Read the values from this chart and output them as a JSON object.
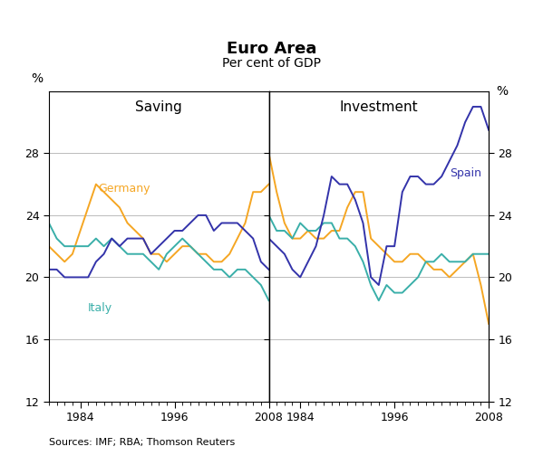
{
  "title": "Euro Area",
  "subtitle": "Per cent of GDP",
  "left_label": "Saving",
  "right_label": "Investment",
  "ylabel_left": "%",
  "ylabel_right": "%",
  "source": "Sources: IMF; RBA; Thomson Reuters",
  "ylim": [
    12,
    32
  ],
  "yticks": [
    12,
    16,
    20,
    24,
    28
  ],
  "years": [
    1980,
    1981,
    1982,
    1983,
    1984,
    1985,
    1986,
    1987,
    1988,
    1989,
    1990,
    1991,
    1992,
    1993,
    1994,
    1995,
    1996,
    1997,
    1998,
    1999,
    2000,
    2001,
    2002,
    2003,
    2004,
    2005,
    2006,
    2007,
    2008
  ],
  "saving_germany": [
    22.0,
    21.5,
    21.0,
    21.5,
    23.0,
    24.5,
    26.0,
    25.5,
    25.0,
    24.5,
    23.5,
    23.0,
    22.5,
    21.5,
    21.5,
    21.0,
    21.5,
    22.0,
    22.0,
    21.5,
    21.5,
    21.0,
    21.0,
    21.5,
    22.5,
    23.5,
    25.5,
    25.5,
    26.0
  ],
  "saving_italy": [
    23.5,
    22.5,
    22.0,
    22.0,
    22.0,
    22.0,
    22.5,
    22.0,
    22.5,
    22.0,
    21.5,
    21.5,
    21.5,
    21.0,
    20.5,
    21.5,
    22.0,
    22.5,
    22.0,
    21.5,
    21.0,
    20.5,
    20.5,
    20.0,
    20.5,
    20.5,
    20.0,
    19.5,
    18.5
  ],
  "saving_spain": [
    20.5,
    20.5,
    20.0,
    20.0,
    20.0,
    20.0,
    21.0,
    21.5,
    22.5,
    22.0,
    22.5,
    22.5,
    22.5,
    21.5,
    22.0,
    22.5,
    23.0,
    23.0,
    23.5,
    24.0,
    24.0,
    23.0,
    23.5,
    23.5,
    23.5,
    23.0,
    22.5,
    21.0,
    20.5
  ],
  "invest_germany": [
    28.0,
    25.5,
    23.5,
    22.5,
    22.5,
    23.0,
    22.5,
    22.5,
    23.0,
    23.0,
    24.5,
    25.5,
    25.5,
    22.5,
    22.0,
    21.5,
    21.0,
    21.0,
    21.5,
    21.5,
    21.0,
    20.5,
    20.5,
    20.0,
    20.5,
    21.0,
    21.5,
    19.5,
    17.0
  ],
  "invest_italy": [
    24.0,
    23.0,
    23.0,
    22.5,
    23.5,
    23.0,
    23.0,
    23.5,
    23.5,
    22.5,
    22.5,
    22.0,
    21.0,
    19.5,
    18.5,
    19.5,
    19.0,
    19.0,
    19.5,
    20.0,
    21.0,
    21.0,
    21.5,
    21.0,
    21.0,
    21.0,
    21.5,
    21.5,
    21.5
  ],
  "invest_spain": [
    22.5,
    22.0,
    21.5,
    20.5,
    20.0,
    21.0,
    22.0,
    24.0,
    26.5,
    26.0,
    26.0,
    25.0,
    23.5,
    20.0,
    19.5,
    22.0,
    22.0,
    25.5,
    26.5,
    26.5,
    26.0,
    26.0,
    26.5,
    27.5,
    28.5,
    30.0,
    31.0,
    31.0,
    29.5
  ],
  "color_germany": "#f5a623",
  "color_italy": "#3aafa9",
  "color_spain": "#3333aa",
  "xtick_left": [
    1984,
    1996,
    2008
  ],
  "xtick_right": [
    1984,
    1996,
    2008
  ]
}
